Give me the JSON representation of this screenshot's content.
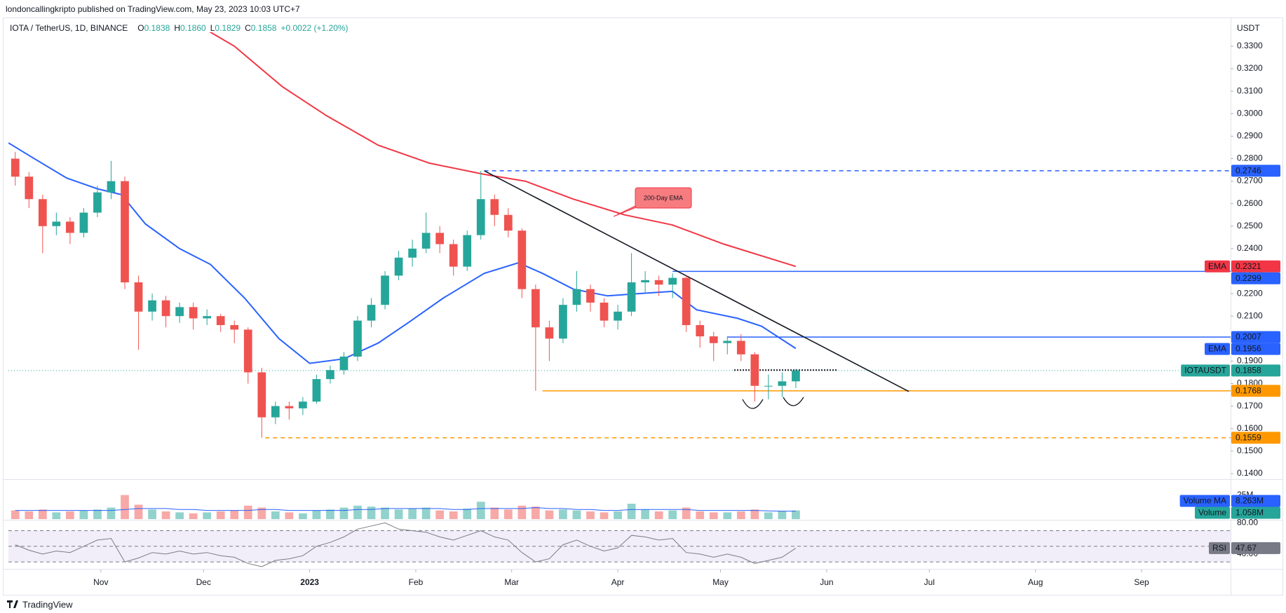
{
  "header": "londoncallingkripto published on TradingView.com, May 23, 2023 10:03 UTC+7",
  "footer": "TradingView",
  "chart_data": {
    "type": "candlestick",
    "symbol": "IOTA / TetherUS, 1D, BINANCE",
    "ohlc_legend": [
      {
        "label": "O",
        "value": "0.1838"
      },
      {
        "label": "H",
        "value": "0.1860"
      },
      {
        "label": "L",
        "value": "0.1829"
      },
      {
        "label": "C",
        "value": "0.1858"
      }
    ],
    "change": "+0.0022 (+1.20%)",
    "currency": "USDT",
    "up_color": "#26a69a",
    "down_color": "#ef5350",
    "xlim": [
      "2022-10-05",
      "2023-09-27"
    ],
    "xticks": [
      {
        "value": "2022-11-01",
        "label": "Nov"
      },
      {
        "value": "2022-12-01",
        "label": "Dec"
      },
      {
        "value": "2023-01-01",
        "label": "2023"
      },
      {
        "value": "2023-02-01",
        "label": "Feb"
      },
      {
        "value": "2023-03-01",
        "label": "Mar"
      },
      {
        "value": "2023-04-01",
        "label": "Apr"
      },
      {
        "value": "2023-05-01",
        "label": "May"
      },
      {
        "value": "2023-06-01",
        "label": "Jun"
      },
      {
        "value": "2023-07-01",
        "label": "Jul"
      },
      {
        "value": "2023-08-01",
        "label": "Aug"
      },
      {
        "value": "2023-09-01",
        "label": "Sep"
      }
    ],
    "ylim": [
      0.1375,
      0.3362
    ],
    "yticks": [
      {
        "value": 0.14,
        "label": "0.1400"
      },
      {
        "value": 0.15,
        "label": "0.1500"
      },
      {
        "value": 0.16,
        "label": "0.1600"
      },
      {
        "value": 0.17,
        "label": "0.1700"
      },
      {
        "value": 0.18,
        "label": "0.1800"
      },
      {
        "value": 0.19,
        "label": "0.1900"
      },
      {
        "value": 0.2,
        "label": "0.2000"
      },
      {
        "value": 0.21,
        "label": "0.2100"
      },
      {
        "value": 0.22,
        "label": "0.2200"
      },
      {
        "value": 0.23,
        "label": "0.2300"
      },
      {
        "value": 0.24,
        "label": "0.2400"
      },
      {
        "value": 0.25,
        "label": "0.2500"
      },
      {
        "value": 0.26,
        "label": "0.2600"
      },
      {
        "value": 0.27,
        "label": "0.2700"
      },
      {
        "value": 0.28,
        "label": "0.2800"
      },
      {
        "value": 0.29,
        "label": "0.2900"
      },
      {
        "value": 0.3,
        "label": "0.3000"
      },
      {
        "value": 0.31,
        "label": "0.3100"
      },
      {
        "value": 0.32,
        "label": "0.3200"
      },
      {
        "value": 0.33,
        "label": "0.3300"
      }
    ],
    "x": [
      "2022-10-07",
      "2022-10-11",
      "2022-10-15",
      "2022-10-19",
      "2022-10-23",
      "2022-10-27",
      "2022-10-31",
      "2022-11-04",
      "2022-11-08",
      "2022-11-12",
      "2022-11-16",
      "2022-11-20",
      "2022-11-24",
      "2022-11-28",
      "2022-12-02",
      "2022-12-06",
      "2022-12-10",
      "2022-12-14",
      "2022-12-18",
      "2022-12-22",
      "2022-12-26",
      "2022-12-30",
      "2023-01-03",
      "2023-01-07",
      "2023-01-11",
      "2023-01-15",
      "2023-01-19",
      "2023-01-23",
      "2023-01-27",
      "2023-01-31",
      "2023-02-04",
      "2023-02-08",
      "2023-02-12",
      "2023-02-16",
      "2023-02-20",
      "2023-02-24",
      "2023-02-28",
      "2023-03-04",
      "2023-03-08",
      "2023-03-12",
      "2023-03-16",
      "2023-03-20",
      "2023-03-24",
      "2023-03-28",
      "2023-04-01",
      "2023-04-05",
      "2023-04-09",
      "2023-04-13",
      "2023-04-17",
      "2023-04-21",
      "2023-04-25",
      "2023-04-29",
      "2023-05-03",
      "2023-05-07",
      "2023-05-11",
      "2023-05-15",
      "2023-05-19",
      "2023-05-23"
    ],
    "open": [
      0.28,
      0.272,
      0.262,
      0.25,
      0.252,
      0.247,
      0.256,
      0.265,
      0.27,
      0.225,
      0.212,
      0.217,
      0.21,
      0.214,
      0.209,
      0.21,
      0.206,
      0.204,
      0.185,
      0.165,
      0.17,
      0.169,
      0.172,
      0.182,
      0.186,
      0.192,
      0.208,
      0.215,
      0.228,
      0.236,
      0.24,
      0.247,
      0.242,
      0.232,
      0.246,
      0.262,
      0.255,
      0.248,
      0.222,
      0.205,
      0.2,
      0.215,
      0.222,
      0.216,
      0.208,
      0.212,
      0.225,
      0.226,
      0.224,
      0.227,
      0.206,
      0.201,
      0.198,
      0.199,
      0.193,
      0.179,
      0.179,
      0.181
    ],
    "high": [
      0.283,
      0.274,
      0.264,
      0.256,
      0.254,
      0.258,
      0.268,
      0.279,
      0.272,
      0.228,
      0.22,
      0.219,
      0.216,
      0.216,
      0.213,
      0.211,
      0.208,
      0.205,
      0.187,
      0.172,
      0.172,
      0.174,
      0.184,
      0.188,
      0.194,
      0.21,
      0.218,
      0.23,
      0.239,
      0.244,
      0.256,
      0.25,
      0.244,
      0.248,
      0.2746,
      0.264,
      0.258,
      0.249,
      0.224,
      0.208,
      0.218,
      0.23,
      0.224,
      0.218,
      0.215,
      0.238,
      0.23,
      0.228,
      0.229,
      0.228,
      0.208,
      0.203,
      0.201,
      0.202,
      0.194,
      0.184,
      0.185,
      0.1865
    ],
    "low": [
      0.268,
      0.258,
      0.238,
      0.246,
      0.242,
      0.245,
      0.254,
      0.262,
      0.222,
      0.195,
      0.208,
      0.205,
      0.207,
      0.204,
      0.206,
      0.203,
      0.198,
      0.18,
      0.1559,
      0.162,
      0.164,
      0.166,
      0.171,
      0.18,
      0.184,
      0.19,
      0.205,
      0.213,
      0.226,
      0.232,
      0.238,
      0.238,
      0.228,
      0.23,
      0.244,
      0.25,
      0.245,
      0.218,
      0.1768,
      0.19,
      0.198,
      0.212,
      0.212,
      0.205,
      0.204,
      0.21,
      0.22,
      0.219,
      0.218,
      0.203,
      0.196,
      0.19,
      0.193,
      0.19,
      0.172,
      0.173,
      0.174,
      0.178
    ],
    "close": [
      0.272,
      0.262,
      0.25,
      0.252,
      0.247,
      0.256,
      0.265,
      0.27,
      0.225,
      0.212,
      0.217,
      0.21,
      0.214,
      0.209,
      0.21,
      0.206,
      0.204,
      0.185,
      0.165,
      0.17,
      0.169,
      0.172,
      0.182,
      0.186,
      0.192,
      0.208,
      0.215,
      0.228,
      0.236,
      0.24,
      0.247,
      0.242,
      0.232,
      0.246,
      0.262,
      0.255,
      0.248,
      0.222,
      0.205,
      0.2,
      0.215,
      0.222,
      0.216,
      0.208,
      0.212,
      0.225,
      0.226,
      0.224,
      0.227,
      0.206,
      0.201,
      0.198,
      0.199,
      0.193,
      0.179,
      0.179,
      0.181,
      0.1858
    ],
    "series": [
      {
        "name": "EMA",
        "color": "#2962ff",
        "x": [
          "2022-10-05",
          "2022-10-12",
          "2022-10-22",
          "2022-10-31",
          "2022-11-07",
          "2022-11-14",
          "2022-11-24",
          "2022-12-03",
          "2022-12-13",
          "2022-12-23",
          "2023-01-01",
          "2023-01-11",
          "2023-01-21",
          "2023-01-30",
          "2023-02-09",
          "2023-02-21",
          "2023-03-03",
          "2023-03-10",
          "2023-03-19",
          "2023-03-29",
          "2023-04-07",
          "2023-04-17",
          "2023-04-24",
          "2023-05-06",
          "2023-05-13",
          "2023-05-23"
        ],
        "values": [
          0.287,
          0.2805,
          0.2714,
          0.2666,
          0.264,
          0.251,
          0.24,
          0.233,
          0.218,
          0.2,
          0.189,
          0.191,
          0.198,
          0.2073,
          0.218,
          0.229,
          0.2337,
          0.229,
          0.222,
          0.219,
          0.22,
          0.221,
          0.2128,
          0.209,
          0.2055,
          0.1956
        ]
      },
      {
        "name": "EMA",
        "color": "#f23645",
        "x": [
          "2022-12-01",
          "2022-12-10",
          "2022-12-24",
          "2023-01-06",
          "2023-01-21",
          "2023-02-05",
          "2023-02-21",
          "2023-03-05",
          "2023-03-19",
          "2023-04-03",
          "2023-04-17",
          "2023-05-02",
          "2023-05-23"
        ],
        "values": [
          0.338,
          0.33,
          0.312,
          0.299,
          0.286,
          0.278,
          0.273,
          0.27,
          0.262,
          0.255,
          0.2505,
          0.242,
          0.2321
        ]
      }
    ],
    "last_price": {
      "name": "IOTAUSDT",
      "value": 0.1858,
      "color": "#26a69a"
    },
    "levels": [
      {
        "value": 0.2746,
        "start": "2023-02-21",
        "color": "#2962ff",
        "style": "dashed"
      },
      {
        "value": 0.2299,
        "start": "2023-04-17",
        "color": "#2962ff",
        "style": "solid"
      },
      {
        "value": 0.2007,
        "start": "2023-05-03",
        "color": "#2962ff",
        "style": "solid"
      },
      {
        "value": 0.1768,
        "start": "2023-03-10",
        "color": "#ff9800",
        "style": "solid"
      },
      {
        "value": 0.1559,
        "start": "2022-12-19",
        "color": "#ff9800",
        "style": "dashed"
      }
    ],
    "neckline": {
      "value": 0.186,
      "start": "2023-05-05",
      "end": "2023-06-04"
    },
    "trendline": {
      "x": [
        "2023-02-21",
        "2023-06-25"
      ],
      "values": [
        0.2746,
        0.1765
      ]
    },
    "annotation": "200-Day EMA",
    "volume": {
      "ylim": [
        0,
        40
      ],
      "yticks": [
        {
          "value": 25,
          "label": "25M"
        }
      ],
      "values": [
        9,
        8,
        10,
        7,
        8,
        9,
        10,
        12,
        25,
        15,
        10,
        8,
        7,
        6,
        7,
        8,
        9,
        14,
        12,
        8,
        7,
        6,
        9,
        10,
        12,
        14,
        13,
        12,
        10,
        11,
        12,
        9,
        8,
        11,
        18,
        12,
        10,
        14,
        13,
        9,
        10,
        9,
        8,
        7,
        8,
        16,
        10,
        8,
        9,
        12,
        8,
        7,
        7,
        8,
        10,
        7,
        8,
        9
      ],
      "ma": {
        "name": "Volume MA",
        "color": "#2962ff",
        "last_label": "8.263M",
        "values": [
          9,
          9,
          9,
          9,
          9,
          9,
          9,
          9,
          10,
          11,
          11,
          11,
          10,
          10,
          9,
          9,
          9,
          9,
          10,
          10,
          9,
          9,
          9,
          9,
          9,
          10,
          10,
          11,
          11,
          11,
          11,
          11,
          10,
          10,
          11,
          11,
          11,
          11,
          12,
          11,
          11,
          10,
          10,
          9,
          9,
          10,
          10,
          10,
          10,
          10,
          9,
          9,
          9,
          9,
          9,
          8.5,
          8.3,
          8.263
        ]
      },
      "current": {
        "name": "Volume",
        "value": 1.058,
        "label": "1.058M",
        "color": "#26a69a"
      }
    },
    "rsi": {
      "name": "RSI",
      "color": "#787b86",
      "ylim": [
        22,
        83
      ],
      "yticks": [
        {
          "value": 80,
          "label": "80.00"
        },
        {
          "value": 40,
          "label": "40.00"
        }
      ],
      "levels": [
        70,
        50,
        30
      ],
      "values": [
        52,
        45,
        40,
        44,
        42,
        50,
        58,
        60,
        30,
        35,
        42,
        40,
        44,
        40,
        42,
        38,
        36,
        28,
        24,
        32,
        34,
        38,
        50,
        55,
        62,
        72,
        76,
        80,
        72,
        70,
        68,
        62,
        58,
        64,
        70,
        62,
        58,
        42,
        30,
        34,
        52,
        58,
        50,
        44,
        48,
        64,
        62,
        58,
        60,
        42,
        40,
        36,
        40,
        36,
        28,
        32,
        36,
        47.67
      ]
    }
  }
}
